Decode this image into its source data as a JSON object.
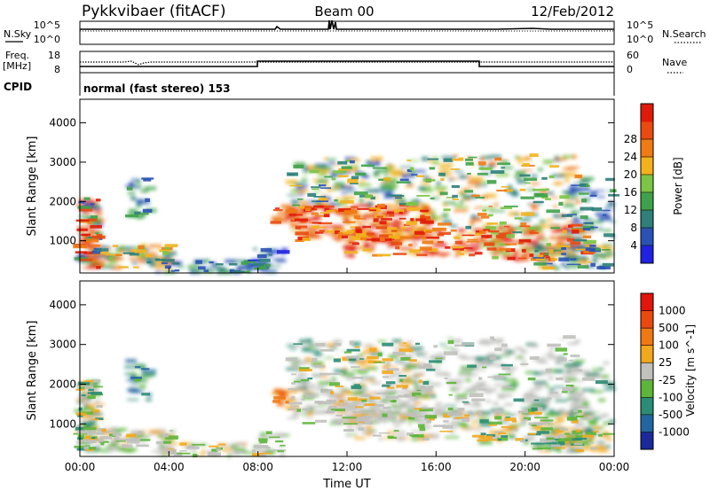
{
  "header": {
    "station": "Pykkvibaer (fitACF)",
    "beam": "Beam 00",
    "date": "12/Feb/2012"
  },
  "strips": {
    "nsky_label": "N.Sky",
    "nsky_ticks": [
      "10^5",
      "10^0"
    ],
    "nsearch_label": "N.Search",
    "nsearch_ticks": [
      "10^5",
      "10^0"
    ],
    "freq_label": "Freq.",
    "freq_unit": "[MHz]",
    "freq_ticks": [
      "18",
      "8"
    ],
    "nave_label": "Nave",
    "nave_ticks": [
      "60",
      "0"
    ],
    "cpid_label": "CPID",
    "cpid_value": "normal (fast stereo) 153"
  },
  "chart_data": [
    {
      "type": "heatmap",
      "title": "",
      "quantity": "Power",
      "ylabel": "Slant Range [km]",
      "yticks": [
        1000,
        2000,
        3000,
        4000
      ],
      "ylim": [
        180,
        4600
      ],
      "xlim_hours": [
        0,
        24
      ],
      "colorbar": {
        "label": "Power [dB]",
        "ticks": [
          "4",
          "8",
          "12",
          "16",
          "20",
          "24",
          "28"
        ],
        "colors": [
          "#1f22e0",
          "#2a52b4",
          "#2f7f7a",
          "#3fa24a",
          "#7bc444",
          "#f2b21c",
          "#f07a14",
          "#e94a10",
          "#e01a08"
        ]
      }
    },
    {
      "type": "heatmap",
      "title": "",
      "quantity": "Velocity",
      "ylabel": "Slant Range [km]",
      "yticks": [
        1000,
        2000,
        3000,
        4000
      ],
      "ylim": [
        180,
        4600
      ],
      "xlabel": "Time UT",
      "xticks": [
        "00:00",
        "04:00",
        "08:00",
        "12:00",
        "16:00",
        "20:00",
        "00:00"
      ],
      "xlim_hours": [
        0,
        24
      ],
      "colorbar": {
        "label": "Velocity [m s^-1]",
        "ticks": [
          "1000",
          "500",
          "100",
          "25",
          "-25",
          "-100",
          "-500",
          "-1000"
        ],
        "colors": [
          "#1a2a9a",
          "#2266a0",
          "#2a8c74",
          "#5db53a",
          "#c0c0bc",
          "#f2a81c",
          "#f07814",
          "#ea4a10",
          "#e2160a"
        ]
      }
    }
  ]
}
